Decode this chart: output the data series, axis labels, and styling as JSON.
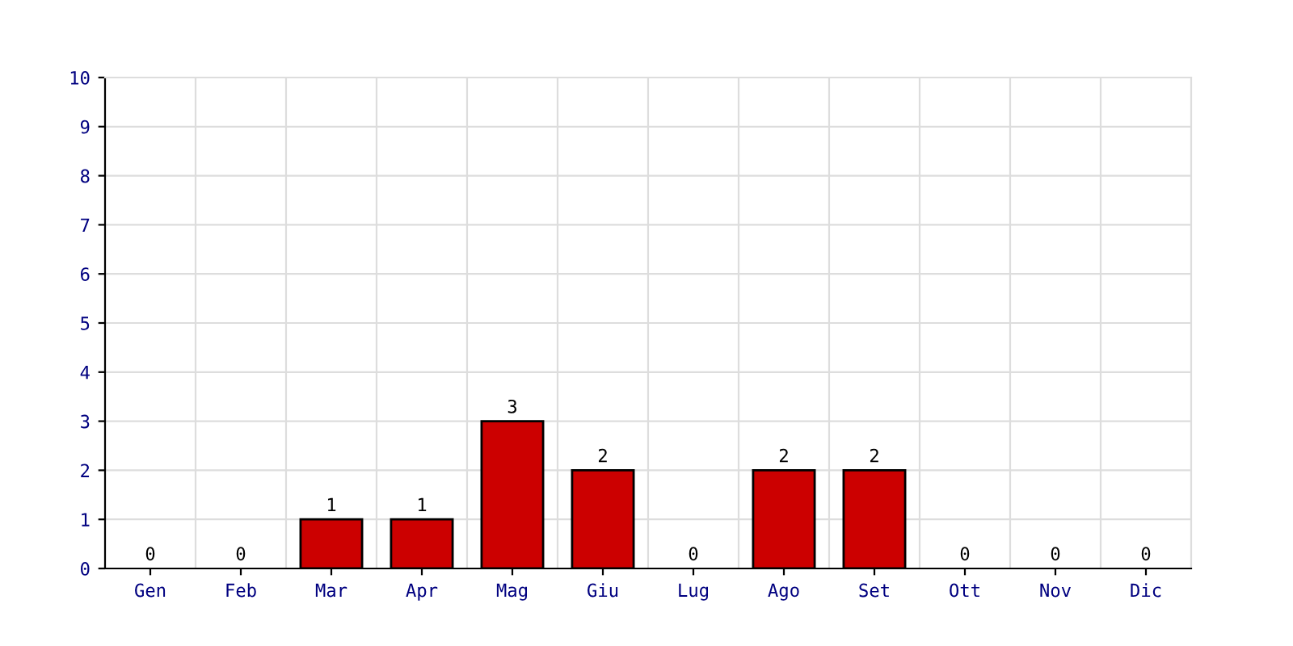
{
  "chart_data": {
    "type": "bar",
    "categories": [
      "Gen",
      "Feb",
      "Mar",
      "Apr",
      "Mag",
      "Giu",
      "Lug",
      "Ago",
      "Set",
      "Ott",
      "Nov",
      "Dic"
    ],
    "values": [
      0,
      0,
      1,
      1,
      3,
      2,
      0,
      2,
      2,
      0,
      0,
      0
    ],
    "color": "#cc0000",
    "ylim": [
      0,
      10
    ],
    "yticks": [
      0,
      1,
      2,
      3,
      4,
      5,
      6,
      7,
      8,
      9,
      10
    ],
    "grid": true,
    "data_labels": true
  }
}
